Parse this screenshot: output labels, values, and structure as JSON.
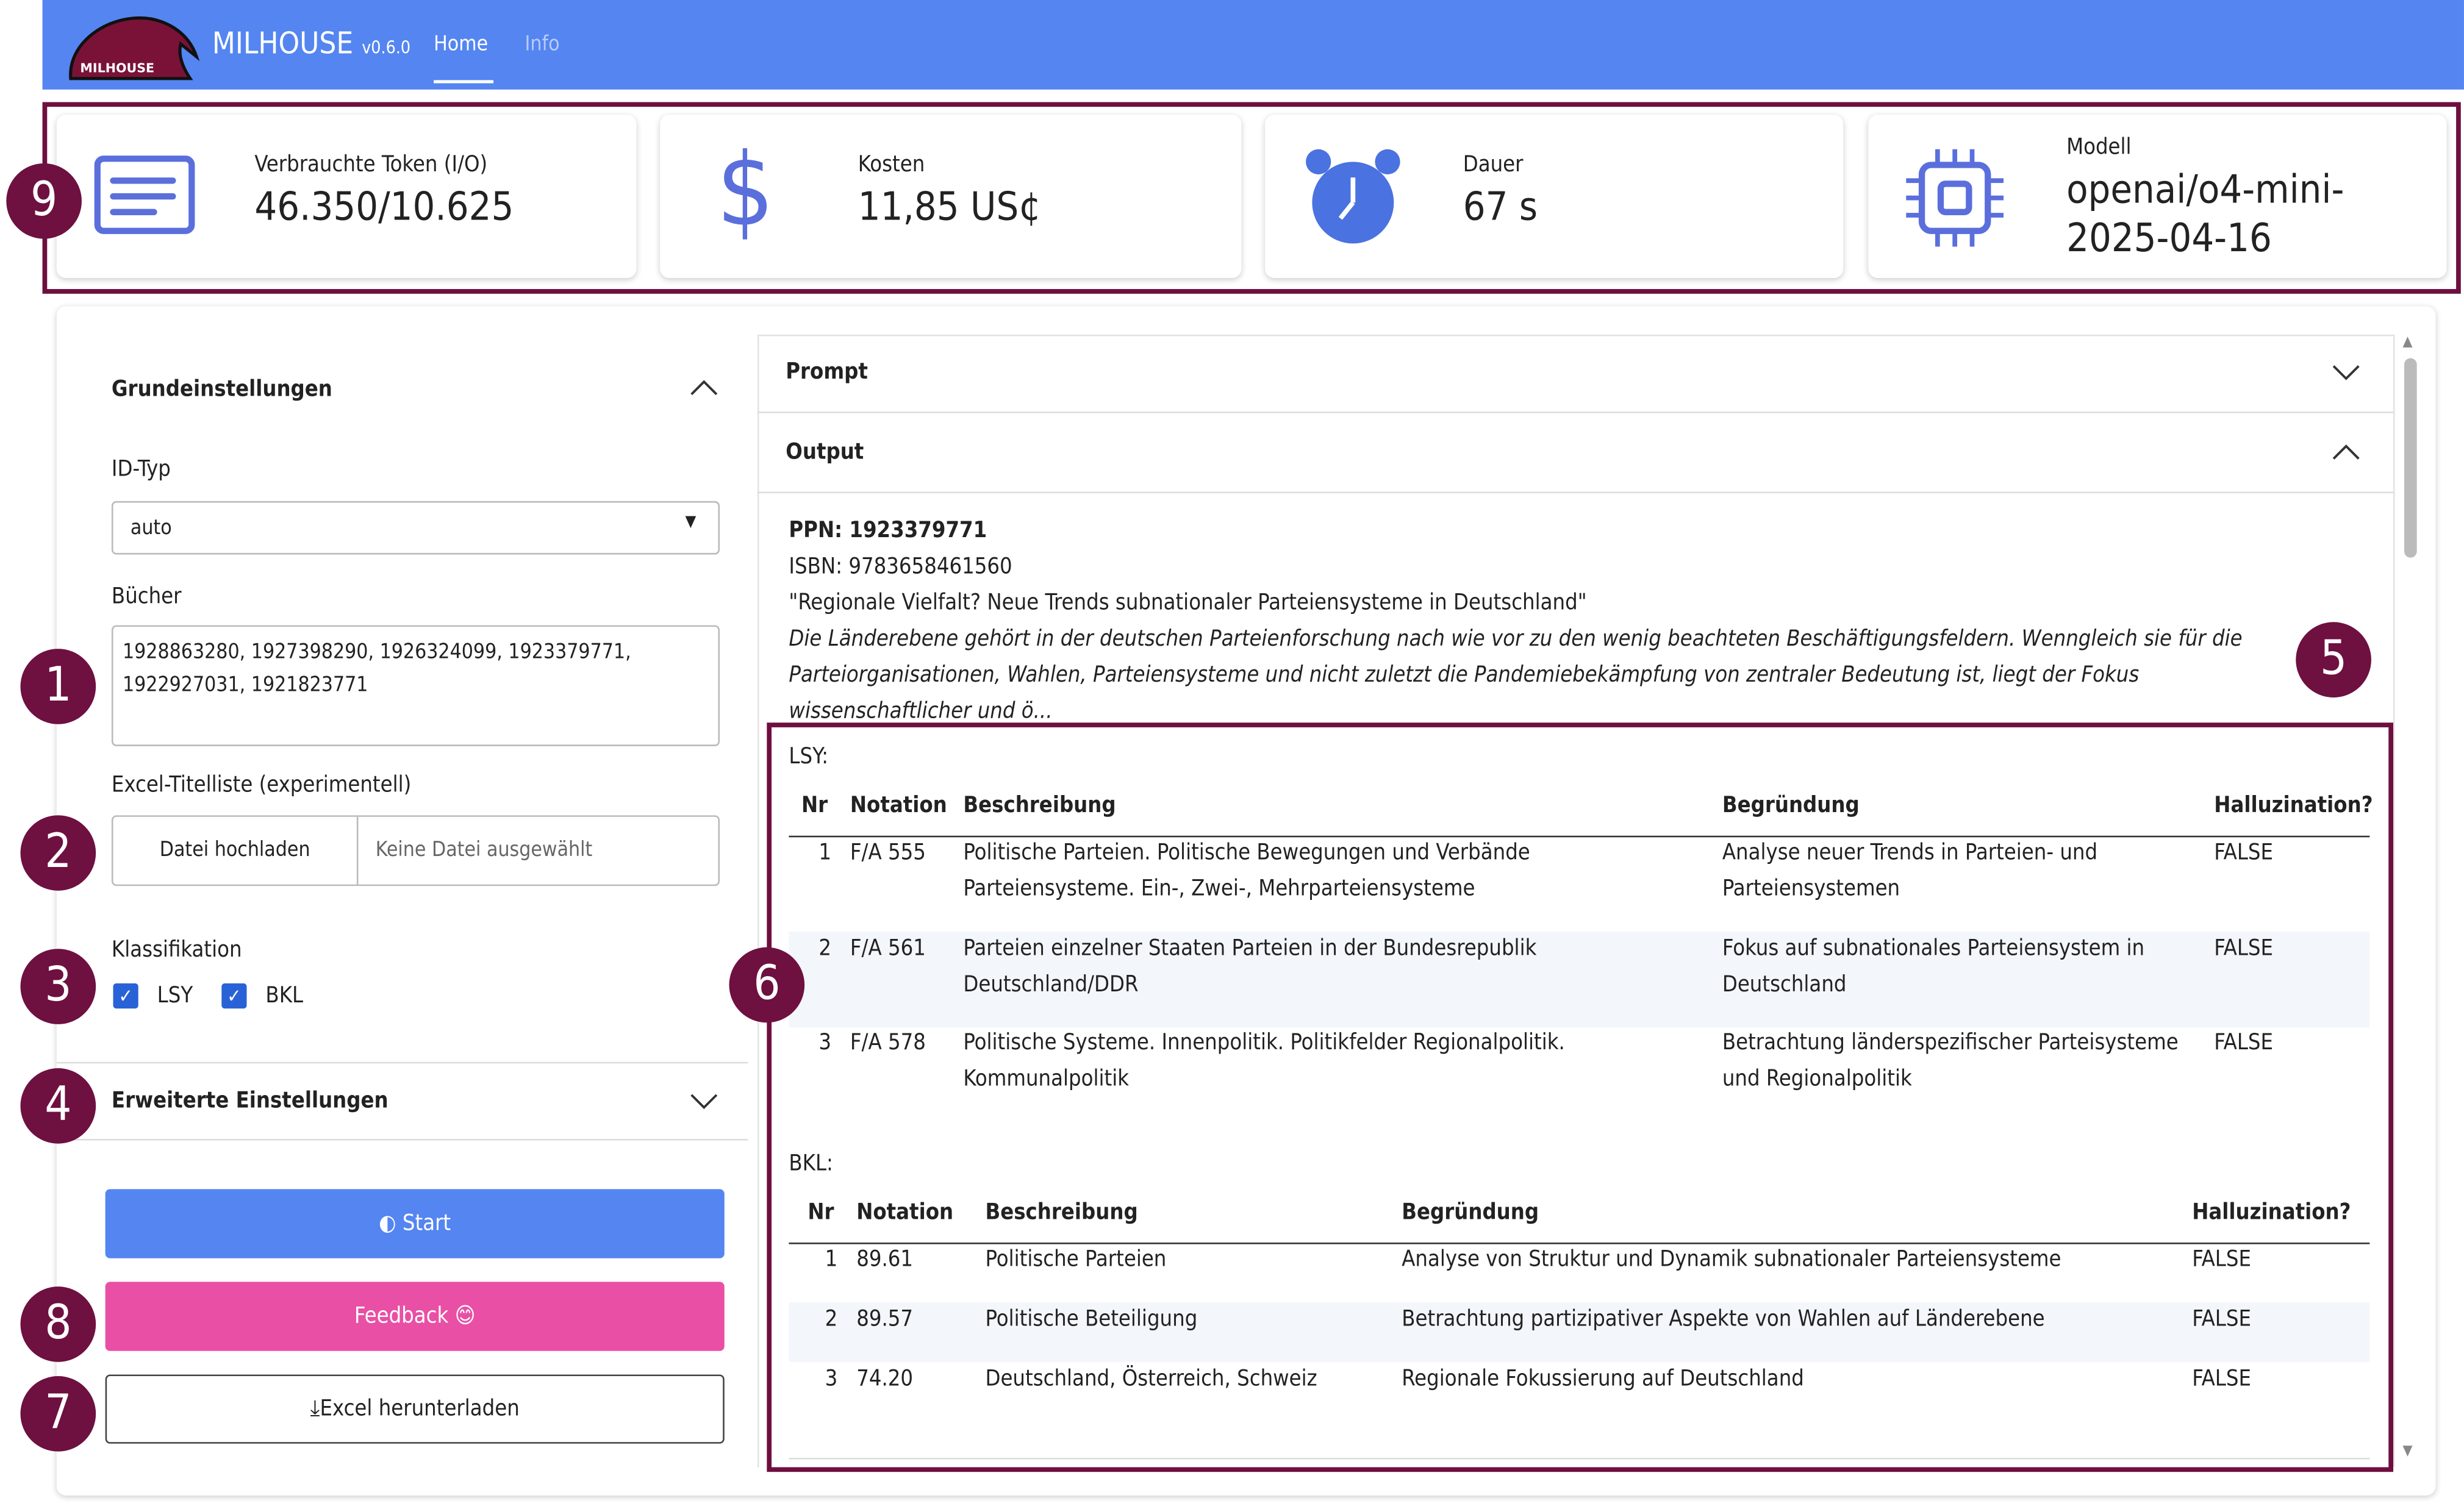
{
  "nav": {
    "app_title": "MILHOUSE",
    "version": "v0.6.0",
    "logo_text": "MILHOUSE",
    "tabs": [
      {
        "label": "Home",
        "active": true
      },
      {
        "label": "Info",
        "active": false
      }
    ]
  },
  "stats": [
    {
      "icon": "document-lines-icon",
      "label": "Verbrauchte Token (I/O)",
      "value": "46.350/10.625"
    },
    {
      "icon": "dollar-icon",
      "label": "Kosten",
      "value": "11,85 US¢"
    },
    {
      "icon": "alarm-clock-icon",
      "label": "Dauer",
      "value": "67 s"
    },
    {
      "icon": "cpu-chip-icon",
      "label": "Modell",
      "value": "openai/o4-mini-2025-04-16"
    }
  ],
  "badges": {
    "b1": "1",
    "b2": "2",
    "b3": "3",
    "b4": "4",
    "b5": "5",
    "b6": "6",
    "b7": "7",
    "b8": "8",
    "b9": "9"
  },
  "settings": {
    "section_title": "Grundeinstellungen",
    "id_type_label": "ID-Typ",
    "id_type_value": "auto",
    "books_label": "Bücher",
    "books_value": "1928863280, 1927398290, 1926324099, 1923379771, 1922927031, 1921823771",
    "excel_label": "Excel-Titelliste (experimentell)",
    "upload_button": "Datei hochladen",
    "no_file": "Keine Datei ausgewählt",
    "classification_label": "Klassifikation",
    "lsy_label": "LSY",
    "lsy_checked": true,
    "bkl_label": "BKL",
    "bkl_checked": true,
    "advanced_title": "Erweiterte Einstellungen",
    "start_button": "Start",
    "feedback_button": "Feedback 😊",
    "download_button": "Excel herunterladen"
  },
  "colors": {
    "accent": "#5485f1",
    "feedback": "#e94fa5",
    "annotation": "#6e1040"
  },
  "output": {
    "prompt_title": "Prompt",
    "output_title": "Output",
    "ppn": "PPN: 1923379771",
    "isbn": "ISBN: 9783658461560",
    "book_title": "\"Regionale Vielfalt? Neue Trends subnationaler Parteiensysteme in Deutschland\"",
    "abstract": "Die Länderebene gehört in der deutschen Parteienforschung nach wie vor zu den wenig beachteten Beschäftigungsfeldern. Wenngleich sie für die Parteiorganisationen, Wahlen, Parteiensysteme und nicht zuletzt die Pandemiebekämpfung von zentraler Bedeutung ist, liegt der Fokus wissenschaftlicher und ö...",
    "columns": [
      "Nr",
      "Notation",
      "Beschreibung",
      "Begründung",
      "Halluzination?"
    ],
    "lsy": {
      "label": "LSY:",
      "rows": [
        [
          "1",
          "F/A 555",
          "Politische Parteien. Politische Bewegungen und Verbände Parteiensysteme. Ein-, Zwei-, Mehrparteiensysteme",
          "Analyse neuer Trends in Parteien- und Parteiensystemen",
          "FALSE"
        ],
        [
          "2",
          "F/A 561",
          "Parteien einzelner Staaten Parteien in der Bundesrepublik Deutschland/DDR",
          "Fokus auf subnationales Parteiensystem in Deutschland",
          "FALSE"
        ],
        [
          "3",
          "F/A 578",
          "Politische Systeme. Innenpolitik. Politikfelder Regionalpolitik. Kommunalpolitik",
          "Betrachtung länderspezifischer Parteisysteme und Regionalpolitik",
          "FALSE"
        ]
      ]
    },
    "bkl": {
      "label": "BKL:",
      "rows": [
        [
          "1",
          "89.61",
          "Politische Parteien",
          "Analyse von Struktur und Dynamik subnationaler Parteiensysteme",
          "FALSE"
        ],
        [
          "2",
          "89.57",
          "Politische Beteiligung",
          "Betrachtung partizipativer Aspekte von Wahlen auf Länderebene",
          "FALSE"
        ],
        [
          "3",
          "74.20",
          "Deutschland, Österreich, Schweiz",
          "Regionale Fokussierung auf Deutschland",
          "FALSE"
        ]
      ]
    }
  }
}
